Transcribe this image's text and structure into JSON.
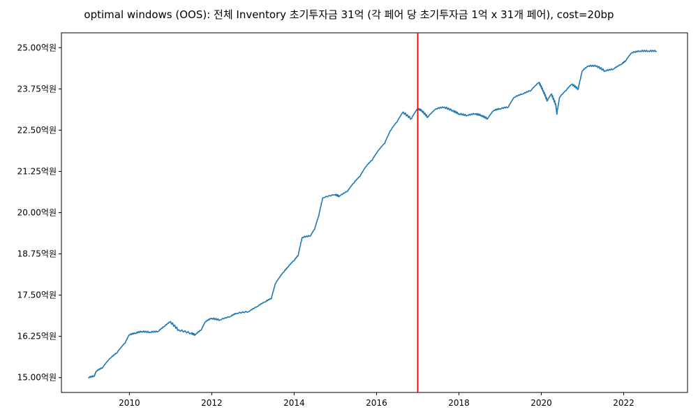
{
  "chart_data": {
    "type": "line",
    "title": "optimal windows (OOS): 전체 Inventory 초기투자금 31억 (각 페어 당 초기투자금 1억 x 31개 페어), cost=20bp",
    "xlabel": "",
    "ylabel": "",
    "xlim": [
      2008.35,
      2023.55
    ],
    "ylim": [
      14.55,
      25.45
    ],
    "x_ticks": [
      2010,
      2012,
      2014,
      2016,
      2018,
      2020,
      2022
    ],
    "x_tick_labels": [
      "2010",
      "2012",
      "2014",
      "2016",
      "2018",
      "2020",
      "2022"
    ],
    "y_ticks": [
      15.0,
      16.25,
      17.5,
      18.75,
      20.0,
      21.25,
      22.5,
      23.75,
      25.0
    ],
    "y_tick_labels": [
      "15.00억원",
      "16.25억원",
      "17.50억원",
      "18.75억원",
      "20.00억원",
      "21.25억원",
      "22.50억원",
      "23.75억원",
      "25.00억원"
    ],
    "vline": {
      "x": 2017.0,
      "color": "#ff0000"
    },
    "series": [
      {
        "color": "#1f77b4",
        "x": [
          2009.0,
          2009.15,
          2009.2,
          2009.35,
          2009.55,
          2009.7,
          2009.9,
          2010.0,
          2010.15,
          2010.3,
          2010.5,
          2010.7,
          2010.85,
          2011.0,
          2011.2,
          2011.5,
          2011.6,
          2011.75,
          2011.85,
          2012.0,
          2012.2,
          2012.45,
          2012.6,
          2012.9,
          2013.1,
          2013.3,
          2013.45,
          2013.55,
          2013.75,
          2013.85,
          2014.0,
          2014.1,
          2014.2,
          2014.4,
          2014.5,
          2014.6,
          2014.7,
          2015.0,
          2015.1,
          2015.3,
          2015.45,
          2015.6,
          2015.75,
          2015.9,
          2016.0,
          2016.2,
          2016.35,
          2016.5,
          2016.65,
          2016.85,
          2017.0,
          2017.1,
          2017.25,
          2017.45,
          2017.65,
          2017.85,
          2018.0,
          2018.2,
          2018.4,
          2018.55,
          2018.7,
          2018.85,
          2019.0,
          2019.2,
          2019.35,
          2019.55,
          2019.75,
          2019.95,
          2020.05,
          2020.15,
          2020.25,
          2020.35,
          2020.38,
          2020.45,
          2020.6,
          2020.75,
          2020.9,
          2021.0,
          2021.15,
          2021.35,
          2021.55,
          2021.75,
          2021.95,
          2022.05,
          2022.2,
          2022.4,
          2022.6,
          2022.8
        ],
        "y": [
          15.0,
          15.05,
          15.2,
          15.3,
          15.6,
          15.75,
          16.05,
          16.3,
          16.35,
          16.4,
          16.38,
          16.4,
          16.55,
          16.7,
          16.45,
          16.35,
          16.3,
          16.45,
          16.7,
          16.8,
          16.75,
          16.85,
          16.95,
          17.0,
          17.15,
          17.3,
          17.4,
          17.85,
          18.2,
          18.35,
          18.55,
          18.7,
          19.25,
          19.3,
          19.5,
          19.9,
          20.45,
          20.55,
          20.5,
          20.65,
          20.9,
          21.1,
          21.4,
          21.6,
          21.8,
          22.1,
          22.5,
          22.75,
          23.05,
          22.85,
          23.15,
          23.1,
          22.9,
          23.15,
          23.2,
          23.1,
          23.0,
          22.95,
          23.0,
          22.95,
          22.85,
          23.1,
          23.15,
          23.2,
          23.5,
          23.6,
          23.7,
          23.95,
          23.7,
          23.4,
          23.6,
          23.3,
          23.0,
          23.5,
          23.7,
          23.9,
          23.75,
          24.3,
          24.45,
          24.45,
          24.3,
          24.35,
          24.5,
          24.6,
          24.85,
          24.9,
          24.9,
          24.9
        ]
      }
    ]
  }
}
